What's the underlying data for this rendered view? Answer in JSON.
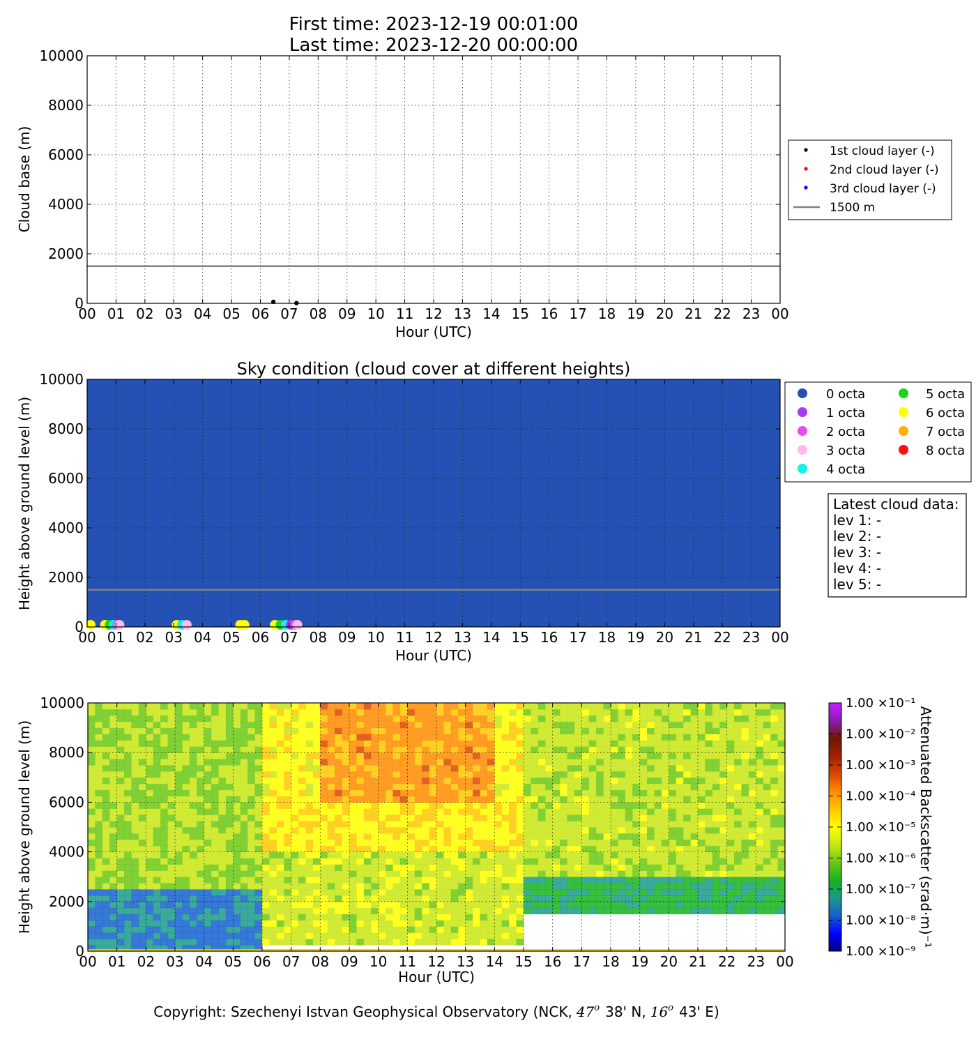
{
  "header": {
    "first_time": "First time: 2023-12-19 00:01:00",
    "last_time": "Last time: 2023-12-20 00:00:00"
  },
  "colors": {
    "reference_line": "#808080",
    "sky_background": "#2451b3",
    "layer1": "#000000",
    "layer2": "#ff0000",
    "layer3": "#0000ff"
  },
  "chart_data": [
    {
      "type": "scatter",
      "title": "",
      "xlabel": "Hour (UTC)",
      "ylabel": "Cloud base (m)",
      "xlim": [
        0,
        24
      ],
      "ylim": [
        0,
        10000
      ],
      "xticks": [
        "00",
        "01",
        "02",
        "03",
        "04",
        "05",
        "06",
        "07",
        "08",
        "09",
        "10",
        "11",
        "12",
        "13",
        "14",
        "15",
        "16",
        "17",
        "18",
        "19",
        "20",
        "21",
        "22",
        "23",
        "00"
      ],
      "yticks": [
        0,
        2000,
        4000,
        6000,
        8000,
        10000
      ],
      "grid": true,
      "legend_position": "right",
      "series": [
        {
          "name": "1st cloud layer (-)",
          "color": "#000000",
          "points": [
            [
              6.45,
              60
            ],
            [
              7.25,
              10
            ]
          ]
        },
        {
          "name": "2nd cloud layer (-)",
          "color": "#ff0000",
          "points": []
        },
        {
          "name": "3rd cloud layer (-)",
          "color": "#0000ff",
          "points": []
        }
      ],
      "reference_line": {
        "name": "1500 m",
        "y": 1500,
        "color": "#808080"
      }
    },
    {
      "type": "scatter",
      "title": "Sky condition (cloud cover at different heights)",
      "xlabel": "Hour (UTC)",
      "ylabel": "Height above ground level (m)",
      "xlim": [
        0,
        24
      ],
      "ylim": [
        0,
        10000
      ],
      "xticks": [
        "00",
        "01",
        "02",
        "03",
        "04",
        "05",
        "06",
        "07",
        "08",
        "09",
        "10",
        "11",
        "12",
        "13",
        "14",
        "15",
        "16",
        "17",
        "18",
        "19",
        "20",
        "21",
        "22",
        "23",
        "00"
      ],
      "yticks": [
        0,
        2000,
        4000,
        6000,
        8000,
        10000
      ],
      "grid": true,
      "background": "#2451b3",
      "legend_position": "right",
      "legend": [
        {
          "label": "0 octa",
          "color": "#2451b3"
        },
        {
          "label": "1 octa",
          "color": "#a43cf0"
        },
        {
          "label": "2 octa",
          "color": "#e34ef0"
        },
        {
          "label": "3 octa",
          "color": "#ffb8f0"
        },
        {
          "label": "4 octa",
          "color": "#14f0f0"
        },
        {
          "label": "5 octa",
          "color": "#14d914"
        },
        {
          "label": "6 octa",
          "color": "#ffff00"
        },
        {
          "label": "7 octa",
          "color": "#ffb000"
        },
        {
          "label": "8 octa",
          "color": "#ff1010"
        }
      ],
      "points": [
        {
          "x": 0.12,
          "y": 40,
          "octa": 6
        },
        {
          "x": 0.62,
          "y": 40,
          "octa": 6
        },
        {
          "x": 0.78,
          "y": 40,
          "octa": 5
        },
        {
          "x": 0.92,
          "y": 40,
          "octa": 4
        },
        {
          "x": 1.05,
          "y": 80,
          "octa": 2
        },
        {
          "x": 1.12,
          "y": 40,
          "octa": 3
        },
        {
          "x": 3.1,
          "y": 40,
          "octa": 6
        },
        {
          "x": 3.28,
          "y": 40,
          "octa": 4
        },
        {
          "x": 3.45,
          "y": 40,
          "octa": 3
        },
        {
          "x": 5.3,
          "y": 40,
          "octa": 6
        },
        {
          "x": 5.45,
          "y": 40,
          "octa": 6
        },
        {
          "x": 6.5,
          "y": 40,
          "octa": 6
        },
        {
          "x": 6.7,
          "y": 40,
          "octa": 5
        },
        {
          "x": 6.88,
          "y": 40,
          "octa": 4
        },
        {
          "x": 7.05,
          "y": 60,
          "octa": 1
        },
        {
          "x": 7.2,
          "y": 80,
          "octa": 2
        },
        {
          "x": 7.28,
          "y": 30,
          "octa": 3
        }
      ],
      "reference_line": {
        "y": 1500,
        "color": "#808080"
      },
      "textbox": {
        "title": "Latest cloud data:",
        "lines": [
          "lev 1: -",
          "lev 2: -",
          "lev 3: -",
          "lev 4: -",
          "lev 5: -"
        ]
      }
    },
    {
      "type": "heatmap",
      "title": "",
      "xlabel": "Hour (UTC)",
      "ylabel": "Height above ground level (m)",
      "xlim": [
        0,
        24
      ],
      "ylim": [
        0,
        10000
      ],
      "xticks": [
        "00",
        "01",
        "02",
        "03",
        "04",
        "05",
        "06",
        "07",
        "08",
        "09",
        "10",
        "11",
        "12",
        "13",
        "14",
        "15",
        "16",
        "17",
        "18",
        "19",
        "20",
        "21",
        "22",
        "23",
        "00"
      ],
      "yticks": [
        0,
        2000,
        4000,
        6000,
        8000,
        10000
      ],
      "grid": true,
      "colorbar": {
        "label": "Attenuated Backscatter (srad·m)⁻¹",
        "scale": "log",
        "range": [
          1e-09,
          0.1
        ],
        "tick_labels": [
          "1.00 ×10⁻⁹",
          "1.00 ×10⁻⁸",
          "1.00 ×10⁻⁷",
          "1.00 ×10⁻⁶",
          "1.00 ×10⁻⁵",
          "1.00 ×10⁻⁴",
          "1.00 ×10⁻³",
          "1.00 ×10⁻²",
          "1.00 ×10⁻¹"
        ],
        "colors": [
          "#00007f",
          "#0000ff",
          "#1560d0",
          "#1a9a8a",
          "#14b41e",
          "#6cc814",
          "#c8e614",
          "#ffff00",
          "#ffc800",
          "#ff8c00",
          "#dc4600",
          "#a02000",
          "#6b1a00",
          "#8c1ab4",
          "#c81eff"
        ]
      },
      "approx_log10_field": [
        {
          "hours": [
            0,
            6
          ],
          "band_m": [
            0,
            2500
          ],
          "log10": -7.5
        },
        {
          "hours": [
            0,
            6
          ],
          "band_m": [
            2500,
            10000
          ],
          "log10": -5.8
        },
        {
          "hours": [
            6,
            15
          ],
          "band_m": [
            300,
            4000
          ],
          "log10": -5.5
        },
        {
          "hours": [
            8,
            14
          ],
          "band_m": [
            6000,
            10000
          ],
          "log10": -4.0
        },
        {
          "hours": [
            15,
            24
          ],
          "band_m": [
            1500,
            3000
          ],
          "log10": -6.8
        },
        {
          "hours": [
            15,
            24
          ],
          "band_m": [
            3000,
            10000
          ],
          "log10": -5.6
        }
      ]
    }
  ],
  "copyright": {
    "prefix": "Copyright: Szechenyi Istvan Geophysical Observatory (NCK,",
    "lat_deg": "47",
    "deg_sym": "o",
    "lat_min": "38' N,",
    "lon_deg": "16",
    "lon_min": "43' E)"
  }
}
